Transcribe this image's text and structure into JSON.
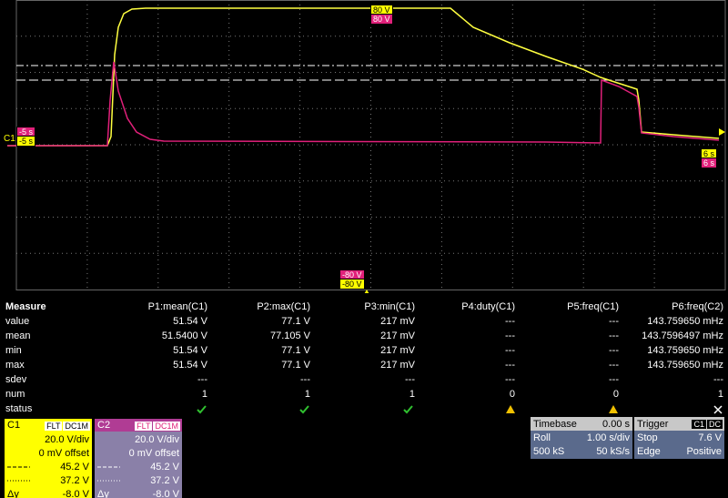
{
  "markers": {
    "top_c1": "80 V",
    "top_c2": "80 V",
    "left_c2": "-5 s",
    "left_c1": "-5 s",
    "left_channel": "C1",
    "right_c2": "6 s",
    "right_c1": "6 s",
    "bottom_c2": "-80 V",
    "bottom_c1": "-80 V"
  },
  "measure": {
    "header": [
      "Measure",
      "P1:mean(C1)",
      "P2:max(C1)",
      "P3:min(C1)",
      "P4:duty(C1)",
      "P5:freq(C1)",
      "P6:freq(C2)"
    ],
    "rows": [
      [
        "value",
        "51.54 V",
        "77.1 V",
        "217 mV",
        "---",
        "---",
        "143.759650 mHz"
      ],
      [
        "mean",
        "51.5400 V",
        "77.105 V",
        "217 mV",
        "---",
        "---",
        "143.7596497 mHz"
      ],
      [
        "min",
        "51.54 V",
        "77.1 V",
        "217 mV",
        "---",
        "---",
        "143.759650 mHz"
      ],
      [
        "max",
        "51.54 V",
        "77.1 V",
        "217 mV",
        "---",
        "---",
        "143.759650 mHz"
      ],
      [
        "sdev",
        "---",
        "---",
        "---",
        "---",
        "---",
        "---"
      ],
      [
        "num",
        "1",
        "1",
        "1",
        "0",
        "0",
        "1"
      ]
    ],
    "status_label": "status"
  },
  "channels": [
    {
      "name": "C1",
      "filter": "FLT",
      "coupling": "DC1M",
      "scale": "20.0 V/div",
      "offset": "0 mV offset",
      "cursor1": "45.2 V",
      "cursor2": "37.2 V",
      "delta_label": "Δy",
      "delta": "-8.0 V"
    },
    {
      "name": "C2",
      "filter": "FLT",
      "coupling": "DC1M",
      "scale": "20.0 V/div",
      "offset": "0 mV offset",
      "cursor1": "45.2 V",
      "cursor2": "37.2 V",
      "delta_label": "Δy",
      "delta": "-8.0 V"
    }
  ],
  "timebase": {
    "title": "Timebase",
    "value": "0.00 s",
    "rows": [
      [
        "Roll",
        "1.00 s/div"
      ],
      [
        "500 kS",
        "50 kS/s"
      ]
    ]
  },
  "trigger": {
    "title": "Trigger",
    "source": "C1",
    "coupling": "DC",
    "rows": [
      [
        "Stop",
        "7.6 V"
      ],
      [
        "Edge",
        "Positive"
      ]
    ]
  }
}
